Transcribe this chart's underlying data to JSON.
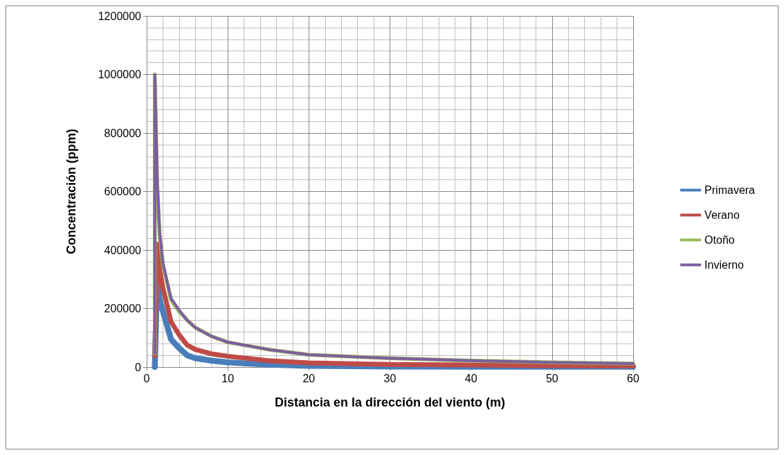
{
  "chart_data": {
    "type": "line",
    "xlabel": "Distancia en la dirección del viento (m)",
    "ylabel": "Concentración (ppm)",
    "xlim": [
      0,
      60
    ],
    "xticks": [
      0,
      10,
      20,
      30,
      40,
      50,
      60
    ],
    "ylim": [
      0,
      1200000
    ],
    "yticks": [
      0,
      200000,
      400000,
      600000,
      800000,
      1000000,
      1200000
    ],
    "grid": true,
    "legend": "right",
    "marker": "none",
    "line_style": "solid",
    "series": [
      {
        "name": "Primavera",
        "color": "#4a7ebb",
        "x": [
          1,
          1,
          1.3,
          1.6,
          2,
          3,
          4,
          5,
          6,
          8,
          10,
          15,
          20,
          30,
          40,
          50,
          60
        ],
        "values": [
          0,
          0,
          310000,
          230000,
          190000,
          95000,
          65000,
          40000,
          30000,
          22000,
          16000,
          8000,
          4000,
          2000,
          1000,
          1000,
          1000
        ]
      },
      {
        "name": "Verano",
        "color": "#be4b48",
        "x": [
          1,
          1,
          1.3,
          1.6,
          2,
          3,
          4,
          5,
          6,
          8,
          10,
          15,
          20,
          30,
          40,
          50,
          60
        ],
        "values": [
          38000,
          38000,
          420000,
          330000,
          270000,
          155000,
          110000,
          75000,
          60000,
          45000,
          37000,
          22000,
          14000,
          9000,
          7000,
          5000,
          4000
        ]
      },
      {
        "name": "Otoño",
        "color": "#98b954",
        "x": [
          1,
          1,
          1.3,
          1.6,
          2,
          3,
          4,
          5,
          6,
          8,
          10,
          15,
          20,
          30,
          40,
          50,
          60
        ],
        "values": [
          45000,
          1000000,
          620000,
          450000,
          350000,
          230000,
          190000,
          160000,
          135000,
          105000,
          85000,
          60000,
          42000,
          30000,
          22000,
          16000,
          12000
        ]
      },
      {
        "name": "Invierno",
        "color": "#7d5fa0",
        "x": [
          1,
          1,
          1.3,
          1.6,
          2,
          3,
          4,
          5,
          6,
          8,
          10,
          15,
          20,
          30,
          40,
          50,
          60
        ],
        "values": [
          45000,
          1000000,
          640000,
          460000,
          355000,
          235000,
          195000,
          160000,
          135000,
          105000,
          85000,
          60000,
          42000,
          30000,
          22000,
          16000,
          12000
        ]
      }
    ]
  }
}
